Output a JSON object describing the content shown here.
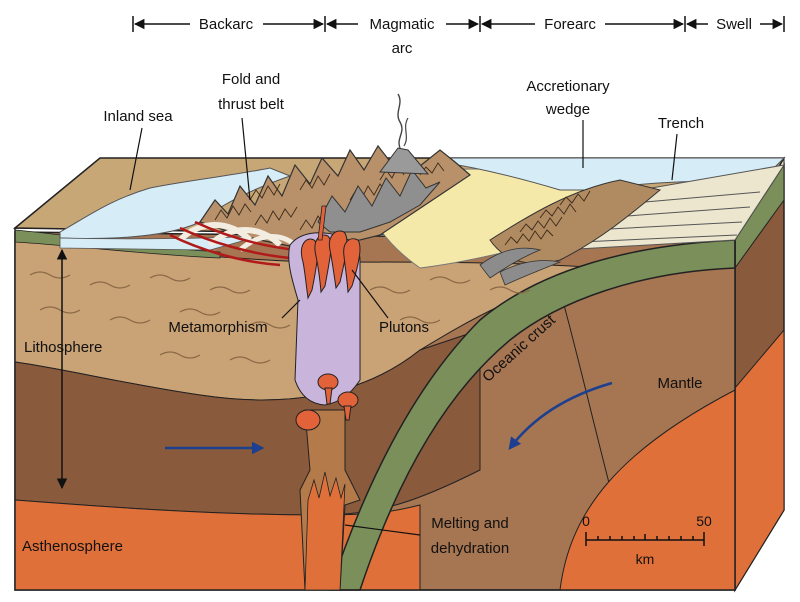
{
  "zones": {
    "backarc": "Backarc",
    "magmatic_arc_line1": "Magmatic",
    "magmatic_arc_line2": "arc",
    "forearc": "Forearc",
    "swell": "Swell"
  },
  "labels": {
    "inland_sea": "Inland sea",
    "fold_line1": "Fold and",
    "fold_line2": "thrust belt",
    "accretionary_line1": "Accretionary",
    "accretionary_line2": "wedge",
    "trench": "Trench",
    "lithosphere": "Lithosphere",
    "metamorphism": "Metamorphism",
    "plutons": "Plutons",
    "oceanic_crust": "Oceanic crust",
    "mantle": "Mantle",
    "asthenosphere": "Asthenosphere",
    "melting_line1": "Melting and",
    "melting_line2": "dehydration"
  },
  "scale_bar": {
    "min_label": "0",
    "max_label": "50",
    "unit": "km"
  },
  "colors": {
    "sea": "#d6ecf6",
    "sediment_top": "#c8a777",
    "crust_tan": "#c9a275",
    "lithosphere_brown": "#a67552",
    "mantle_dark": "#8a5a3c",
    "asthenosphere": "#e0703a",
    "oceanic_crust": "#7a8f5a",
    "magma_chamber": "#c9b4dc",
    "pluton": "#e2623a",
    "forearc_yellow": "#f4e9a8",
    "arrow_blue": "#1c3f8f",
    "metamorphism_red": "#b11a1a"
  }
}
